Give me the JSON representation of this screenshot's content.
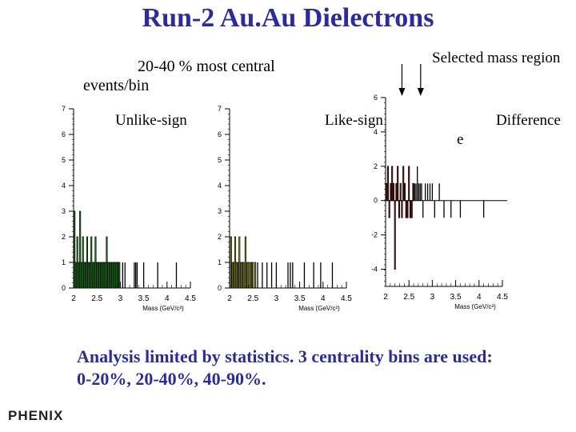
{
  "slide": {
    "title": "Run-2 Au.Au Dielectrons",
    "subtitle": "20-40 % most central",
    "y_label": "events/bin",
    "selected_mass_label": "Selected mass region",
    "footer_line1": "Analysis limited by statistics.  3 centrality bins are used:",
    "footer_line2": "0-20%,  20-40%,  40-90%.",
    "logo": "PHENIX"
  },
  "colors": {
    "title": "#2b2b9a",
    "unlike_fill": "#22dd22",
    "like_fill": "#eeee22",
    "difference_fill": "#bb2222",
    "histogram": "#000000"
  },
  "chart_data": [
    {
      "type": "bar",
      "label": "Unlike-sign",
      "xlabel": "Mass (GeV/c²)",
      "xlim": [
        2,
        4.5
      ],
      "ylim": [
        0,
        7
      ],
      "x_ticks": [
        "2",
        "2.5",
        "3",
        "3.5",
        "4",
        "4.5"
      ],
      "y_ticks": [
        "0",
        "1",
        "2",
        "3",
        "4",
        "5",
        "6",
        "7"
      ],
      "fill_below": 3.0,
      "x": [
        2.02,
        2.05,
        2.08,
        2.11,
        2.14,
        2.17,
        2.2,
        2.23,
        2.26,
        2.29,
        2.32,
        2.35,
        2.38,
        2.41,
        2.44,
        2.47,
        2.5,
        2.53,
        2.56,
        2.59,
        2.62,
        2.65,
        2.68,
        2.71,
        2.74,
        2.77,
        2.8,
        2.83,
        2.86,
        2.89,
        2.92,
        2.95,
        2.98,
        3.05,
        3.1,
        3.3,
        3.33,
        3.36,
        3.5,
        3.8,
        4.2
      ],
      "values": [
        3,
        1,
        2,
        1,
        3,
        1,
        2,
        1,
        1,
        2,
        1,
        1,
        2,
        1,
        1,
        2,
        1,
        1,
        1,
        1,
        1,
        1,
        1,
        2,
        1,
        1,
        1,
        1,
        1,
        1,
        1,
        1,
        1,
        1,
        1,
        1,
        1,
        1,
        1,
        1,
        1
      ]
    },
    {
      "type": "bar",
      "label": "Like-sign",
      "xlabel": "Mass (GeV/c²)",
      "xlim": [
        2,
        4.5
      ],
      "ylim": [
        0,
        7
      ],
      "x_ticks": [
        "2",
        "2.5",
        "3",
        "3.5",
        "4",
        "4.5"
      ],
      "y_ticks": [
        "0",
        "1",
        "2",
        "3",
        "4",
        "5",
        "6",
        "7"
      ],
      "fill_below": 2.6,
      "x": [
        2.03,
        2.06,
        2.09,
        2.12,
        2.15,
        2.18,
        2.21,
        2.24,
        2.27,
        2.3,
        2.34,
        2.38,
        2.42,
        2.46,
        2.5,
        2.55,
        2.6,
        2.7,
        2.8,
        2.9,
        3.0,
        3.25,
        3.3,
        3.35,
        3.6,
        3.8,
        3.95,
        4.2
      ],
      "values": [
        2,
        1,
        1,
        2,
        1,
        1,
        2,
        1,
        1,
        1,
        2,
        1,
        1,
        1,
        1,
        1,
        1,
        1,
        1,
        1,
        1,
        1,
        1,
        1,
        1,
        1,
        1,
        1
      ]
    },
    {
      "type": "bar",
      "label": "Difference",
      "xlabel": "Mass (GeV/c²)",
      "xlim": [
        2,
        4.5
      ],
      "ylim": [
        -5,
        6
      ],
      "x_ticks": [
        "2",
        "2.5",
        "3",
        "3.5",
        "4",
        "4.5"
      ],
      "y_ticks": [
        "-4",
        "-2",
        "0",
        "2",
        "4",
        "6"
      ],
      "fill_below": 2.6,
      "selected_region": [
        2.35,
        2.75
      ],
      "x": [
        2.02,
        2.05,
        2.08,
        2.11,
        2.14,
        2.17,
        2.2,
        2.23,
        2.26,
        2.29,
        2.32,
        2.35,
        2.38,
        2.41,
        2.44,
        2.47,
        2.5,
        2.53,
        2.56,
        2.59,
        2.62,
        2.65,
        2.68,
        2.71,
        2.74,
        2.77,
        2.8,
        2.85,
        2.9,
        2.95,
        3.0,
        3.05,
        3.15,
        3.25,
        3.4,
        3.6,
        4.1
      ],
      "values": [
        1,
        2,
        -1,
        1,
        2,
        1,
        -4,
        1,
        2,
        -1,
        1,
        -1,
        2,
        1,
        -1,
        -1,
        2,
        -1,
        -1,
        1,
        1,
        1,
        2,
        1,
        1,
        1,
        -1,
        1,
        1,
        1,
        1,
        -1,
        1,
        -1,
        -1,
        -1,
        -1
      ]
    }
  ]
}
